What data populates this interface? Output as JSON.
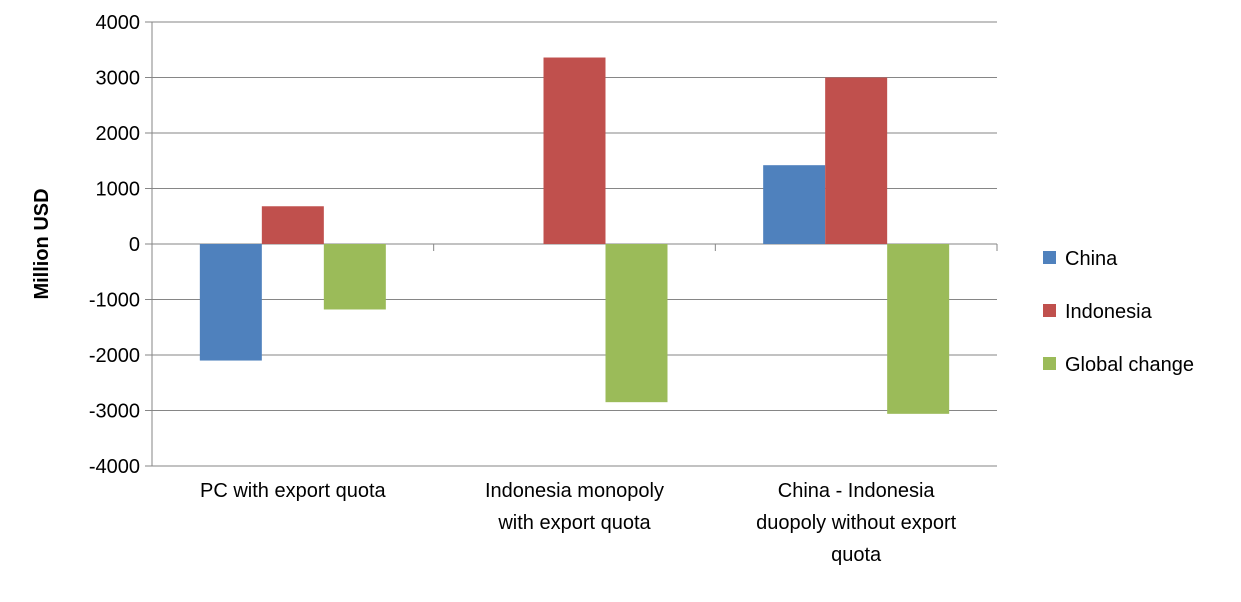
{
  "chart_data": {
    "type": "bar",
    "ylabel": "Million USD",
    "xlabel": "",
    "ylim": [
      -4000,
      4000
    ],
    "y_ticks": [
      "4000",
      "3000",
      "2000",
      "1000",
      "0",
      "-1000",
      "-2000",
      "-3000",
      "-4000"
    ],
    "y_tick_values": [
      4000,
      3000,
      2000,
      1000,
      0,
      -1000,
      -2000,
      -3000,
      -4000
    ],
    "categories": [
      [
        "PC with export quota"
      ],
      [
        "Indonesia monopoly",
        "with export quota"
      ],
      [
        "China - Indonesia",
        "duopoly without export",
        "quota"
      ]
    ],
    "series": [
      {
        "name": "China",
        "color": "#4F81BD",
        "values": [
          -2100,
          0,
          1420
        ]
      },
      {
        "name": "Indonesia",
        "color": "#C0504D",
        "values": [
          680,
          3360,
          3000
        ]
      },
      {
        "name": "Global change",
        "color": "#9BBB59",
        "values": [
          -1180,
          -2850,
          -3060
        ]
      }
    ],
    "grid": true,
    "legend": "right"
  }
}
